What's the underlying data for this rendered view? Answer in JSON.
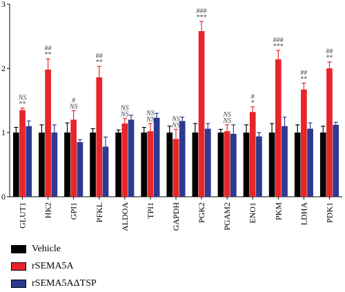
{
  "chart_data": {
    "type": "bar",
    "title": "",
    "xlabel": "",
    "ylabel": "",
    "ylim": [
      0,
      3
    ],
    "yticks": [
      "0",
      "1",
      "2",
      "3"
    ],
    "grid": false,
    "legend_position": "bottom-left",
    "categories": [
      "GLUT1",
      "HK2",
      "GPI1",
      "PFKL",
      "ALDOA",
      "TPI1",
      "GAPDH",
      "PGK2",
      "PGAM2",
      "ENO1",
      "PKM",
      "LDHA",
      "PDK1"
    ],
    "series": [
      {
        "name": "Vehicle",
        "color": "#000000",
        "values": [
          1.0,
          1.0,
          1.0,
          1.0,
          1.0,
          1.0,
          1.0,
          1.0,
          1.0,
          1.0,
          1.0,
          1.0,
          1.0
        ],
        "errors": [
          0.08,
          0.12,
          0.15,
          0.06,
          0.04,
          0.08,
          0.1,
          0.14,
          0.05,
          0.12,
          0.14,
          0.12,
          0.1
        ]
      },
      {
        "name": "rSEMA5A",
        "color": "#e8262a",
        "values": [
          1.35,
          1.98,
          1.2,
          1.86,
          1.14,
          1.02,
          0.9,
          2.58,
          1.02,
          1.32,
          2.14,
          1.67,
          2.0
        ],
        "errors": [
          0.03,
          0.17,
          0.14,
          0.17,
          0.08,
          0.12,
          0.15,
          0.15,
          0.1,
          0.08,
          0.14,
          0.1,
          0.1
        ]
      },
      {
        "name": "rSEMA5AΔTSP",
        "color": "#2d3a8f",
        "values": [
          1.1,
          1.0,
          0.85,
          0.78,
          1.2,
          1.23,
          1.18,
          1.06,
          0.98,
          0.94,
          1.1,
          1.06,
          1.12
        ],
        "errors": [
          0.08,
          0.12,
          0.04,
          0.15,
          0.07,
          0.07,
          0.06,
          0.08,
          0.14,
          0.06,
          0.14,
          0.09,
          0.04
        ]
      }
    ],
    "annotations": [
      [
        "NS",
        "**"
      ],
      [
        "##",
        "**"
      ],
      [
        "#",
        "NS"
      ],
      [
        "##",
        "**"
      ],
      [
        "NS",
        "NS"
      ],
      [
        "NS",
        "NS"
      ],
      [
        "NS",
        "NS"
      ],
      [
        "###",
        "***"
      ],
      [
        "NS",
        "NS"
      ],
      [
        "#",
        "*"
      ],
      [
        "###",
        "***"
      ],
      [
        "##",
        "**"
      ],
      [
        "##",
        "**"
      ]
    ]
  },
  "legend": {
    "items": [
      {
        "label": "Vehicle",
        "color": "#000000"
      },
      {
        "label": "rSEMA5A",
        "color": "#e8262a"
      },
      {
        "label": "rSEMA5AΔTSP",
        "color": "#2d3a8f"
      }
    ]
  }
}
